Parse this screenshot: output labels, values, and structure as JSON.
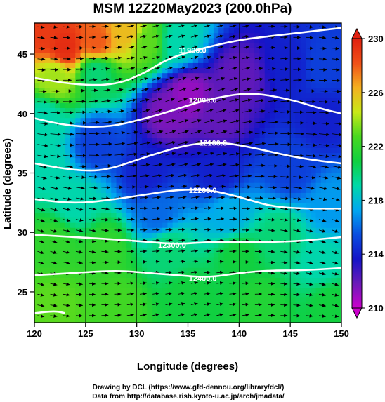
{
  "chart_data": {
    "type": "heatmap",
    "title": "MSM 12Z20May2023 (200.0hPa)",
    "xlabel": "Longitude (degrees)",
    "ylabel": "Latitude  (degrees)",
    "xlim": [
      120,
      150
    ],
    "ylim": [
      22.4,
      47.6
    ],
    "x_ticks": [
      "120",
      "125",
      "130",
      "135",
      "140",
      "145",
      "150"
    ],
    "y_ticks": [
      "25",
      "30",
      "35",
      "40",
      "45"
    ],
    "colorbar": {
      "min": 210,
      "max": 230,
      "ticks": [
        "210",
        "214",
        "218",
        "222",
        "226",
        "230"
      ],
      "colors": [
        "#cc00cc",
        "#6a1ab8",
        "#1414c8",
        "#0a4ee0",
        "#00a8f0",
        "#00d8a8",
        "#10d040",
        "#48d820",
        "#c8e818",
        "#f4b020",
        "#f05018",
        "#e02010"
      ]
    },
    "height_contours": [
      {
        "label": "11900.0",
        "points": [
          [
            120,
            43.0
          ],
          [
            124,
            42.4
          ],
          [
            128,
            42.4
          ],
          [
            131,
            43.5
          ],
          [
            133,
            44.6
          ],
          [
            136,
            45.4
          ],
          [
            140,
            46.2
          ],
          [
            144,
            46.6
          ],
          [
            148,
            47.0
          ],
          [
            150,
            47.2
          ]
        ]
      },
      {
        "label": "12000.0",
        "points": [
          [
            120,
            39.6
          ],
          [
            123,
            39.0
          ],
          [
            127,
            38.8
          ],
          [
            131,
            39.6
          ],
          [
            134,
            40.4
          ],
          [
            137,
            41.2
          ],
          [
            141,
            41.8
          ],
          [
            145,
            41.2
          ],
          [
            148,
            40.4
          ],
          [
            150,
            40.0
          ]
        ]
      },
      {
        "label": "12100.0",
        "points": [
          [
            120,
            35.8
          ],
          [
            124,
            35.2
          ],
          [
            127,
            35.2
          ],
          [
            131,
            36.4
          ],
          [
            135,
            37.4
          ],
          [
            138,
            37.6
          ],
          [
            141,
            37.2
          ],
          [
            145,
            36.4
          ],
          [
            148,
            36.0
          ],
          [
            150,
            35.8
          ]
        ]
      },
      {
        "label": "12200.0",
        "points": [
          [
            120,
            32.8
          ],
          [
            124,
            32.4
          ],
          [
            128,
            32.8
          ],
          [
            131,
            33.2
          ],
          [
            134,
            33.6
          ],
          [
            137,
            33.6
          ],
          [
            140,
            33.0
          ],
          [
            143,
            32.2
          ],
          [
            146,
            32.0
          ],
          [
            150,
            32.0
          ]
        ]
      },
      {
        "label": "12300.0",
        "points": [
          [
            120,
            29.8
          ],
          [
            124,
            29.6
          ],
          [
            128,
            29.4
          ],
          [
            131,
            29.2
          ],
          [
            134,
            29.0
          ],
          [
            137,
            29.2
          ],
          [
            141,
            29.2
          ],
          [
            145,
            29.2
          ],
          [
            150,
            29.6
          ]
        ]
      },
      {
        "label": "12400.0",
        "points": [
          [
            120,
            26.4
          ],
          [
            124,
            26.6
          ],
          [
            128,
            26.8
          ],
          [
            131,
            26.6
          ],
          [
            134,
            26.4
          ],
          [
            137,
            26.2
          ],
          [
            140,
            26.6
          ],
          [
            143,
            26.8
          ],
          [
            146,
            26.8
          ],
          [
            150,
            27.0
          ]
        ]
      },
      {
        "label": "",
        "points": [
          [
            120,
            23.2
          ],
          [
            122,
            23.4
          ],
          [
            123,
            23.2
          ]
        ]
      }
    ],
    "temperature_anchors": [
      {
        "lon": 121,
        "lat": 46.8,
        "t": 229
      },
      {
        "lon": 123,
        "lat": 45.6,
        "t": 229.5
      },
      {
        "lon": 126,
        "lat": 46.0,
        "t": 228
      },
      {
        "lon": 129,
        "lat": 46.8,
        "t": 226
      },
      {
        "lon": 131,
        "lat": 46.0,
        "t": 223
      },
      {
        "lon": 122,
        "lat": 43.0,
        "t": 224
      },
      {
        "lon": 126,
        "lat": 43.4,
        "t": 220
      },
      {
        "lon": 134,
        "lat": 46.0,
        "t": 219
      },
      {
        "lon": 135,
        "lat": 41.6,
        "t": 211
      },
      {
        "lon": 133,
        "lat": 40.0,
        "t": 211.5
      },
      {
        "lon": 138,
        "lat": 39.6,
        "t": 212
      },
      {
        "lon": 140,
        "lat": 43.0,
        "t": 212
      },
      {
        "lon": 145,
        "lat": 44.0,
        "t": 214
      },
      {
        "lon": 148,
        "lat": 44.0,
        "t": 215
      },
      {
        "lon": 148,
        "lat": 39.6,
        "t": 214
      },
      {
        "lon": 121,
        "lat": 39.5,
        "t": 219
      },
      {
        "lon": 121,
        "lat": 35.5,
        "t": 219
      },
      {
        "lon": 126,
        "lat": 37.5,
        "t": 215
      },
      {
        "lon": 131,
        "lat": 35.0,
        "t": 214
      },
      {
        "lon": 138,
        "lat": 35.0,
        "t": 214
      },
      {
        "lon": 145,
        "lat": 35.5,
        "t": 215
      },
      {
        "lon": 149,
        "lat": 32.0,
        "t": 217
      },
      {
        "lon": 124,
        "lat": 32.5,
        "t": 219
      },
      {
        "lon": 132,
        "lat": 31.5,
        "t": 216
      },
      {
        "lon": 139,
        "lat": 31.5,
        "t": 217.5
      },
      {
        "lon": 144,
        "lat": 29.5,
        "t": 220
      },
      {
        "lon": 122,
        "lat": 29.0,
        "t": 222
      },
      {
        "lon": 127,
        "lat": 28.5,
        "t": 222
      },
      {
        "lon": 133,
        "lat": 28.5,
        "t": 220
      },
      {
        "lon": 140,
        "lat": 28.0,
        "t": 221
      },
      {
        "lon": 148,
        "lat": 27.5,
        "t": 219
      },
      {
        "lon": 122,
        "lat": 24.0,
        "t": 223
      },
      {
        "lon": 128,
        "lat": 24.0,
        "t": 222.5
      },
      {
        "lon": 135,
        "lat": 24.5,
        "t": 221
      },
      {
        "lon": 142,
        "lat": 24.0,
        "t": 221.5
      },
      {
        "lon": 149,
        "lat": 24.0,
        "t": 221
      }
    ]
  },
  "credits": {
    "line1": "Drawing by DCL (https://www.gfd-dennou.org/library/dcl/)",
    "line2": "Data from http://database.rish.kyoto-u.ac.jp/arch/jmadata/"
  }
}
